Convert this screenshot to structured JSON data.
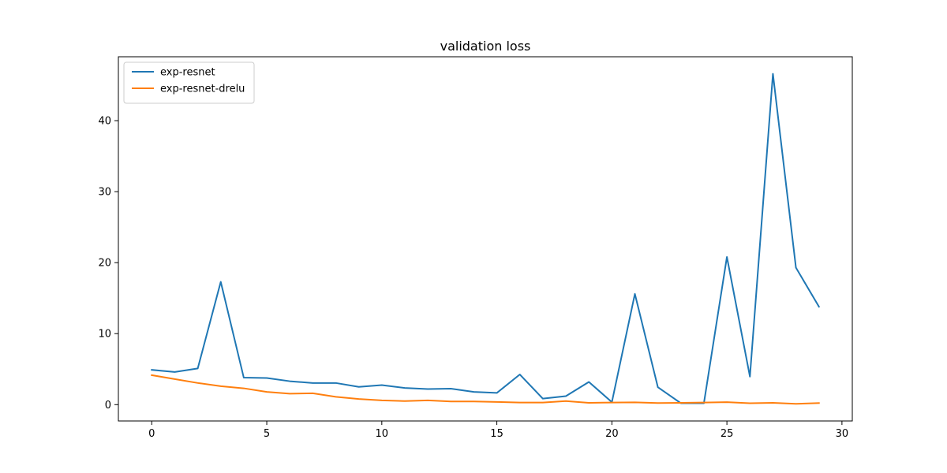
{
  "chart_data": {
    "type": "line",
    "title": "validation loss",
    "xlabel": "",
    "ylabel": "",
    "xlim": [
      -1.45,
      30.45
    ],
    "ylim": [
      -2.3,
      49.0
    ],
    "xticks": [
      0,
      5,
      10,
      15,
      20,
      25,
      30
    ],
    "yticks": [
      0,
      10,
      20,
      30,
      40
    ],
    "grid": false,
    "legend_position": "top-left",
    "x": [
      0,
      1,
      2,
      3,
      4,
      5,
      6,
      7,
      8,
      9,
      10,
      11,
      12,
      13,
      14,
      15,
      16,
      17,
      18,
      19,
      20,
      21,
      22,
      23,
      24,
      25,
      26,
      27,
      28,
      29
    ],
    "series": [
      {
        "name": "exp-resnet",
        "color": "#1f77b4",
        "values": [
          4.9,
          4.6,
          5.1,
          17.3,
          3.8,
          3.75,
          3.3,
          3.05,
          3.05,
          2.5,
          2.75,
          2.35,
          2.2,
          2.25,
          1.8,
          1.65,
          4.25,
          0.85,
          1.2,
          3.2,
          0.35,
          15.6,
          2.45,
          0.2,
          0.2,
          20.8,
          3.95,
          46.6,
          19.3,
          13.8
        ]
      },
      {
        "name": "exp-resnet-drelu",
        "color": "#ff7f0e",
        "values": [
          4.15,
          3.6,
          3.05,
          2.6,
          2.3,
          1.8,
          1.55,
          1.6,
          1.1,
          0.8,
          0.6,
          0.5,
          0.6,
          0.45,
          0.45,
          0.38,
          0.3,
          0.3,
          0.5,
          0.25,
          0.3,
          0.32,
          0.22,
          0.25,
          0.3,
          0.35,
          0.2,
          0.25,
          0.12,
          0.22
        ]
      }
    ]
  }
}
